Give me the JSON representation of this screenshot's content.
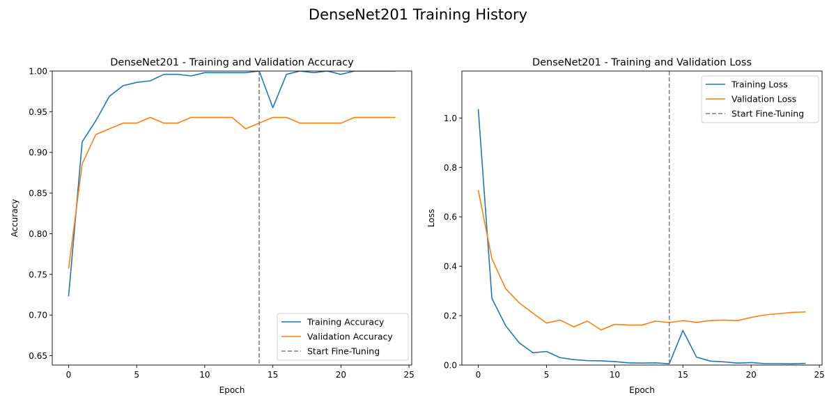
{
  "figure": {
    "suptitle": "DenseNet201 Training History"
  },
  "chart_data": [
    {
      "type": "line",
      "title": "DenseNet201 - Training and Validation Accuracy",
      "xlabel": "Epoch",
      "ylabel": "Accuracy",
      "xlim": [
        -1.2,
        25.2
      ],
      "ylim": [
        0.6385,
        1.0
      ],
      "xticks": [
        0,
        5,
        10,
        15,
        20,
        25
      ],
      "yticks": [
        0.65,
        0.7,
        0.75,
        0.8,
        0.85,
        0.9,
        0.95,
        1.0
      ],
      "ytick_labels": [
        "0.65",
        "0.70",
        "0.75",
        "0.80",
        "0.85",
        "0.90",
        "0.95",
        "1.00"
      ],
      "grid": false,
      "legend_position": "lower-right",
      "x": [
        0,
        1,
        2,
        3,
        4,
        5,
        6,
        7,
        8,
        9,
        10,
        11,
        12,
        13,
        14,
        15,
        16,
        17,
        18,
        19,
        20,
        21,
        22,
        23,
        24
      ],
      "series": [
        {
          "name": "Training Accuracy",
          "color": "#1f77b4",
          "values": [
            0.723,
            0.913,
            0.939,
            0.969,
            0.982,
            0.986,
            0.988,
            0.996,
            0.996,
            0.994,
            0.998,
            0.998,
            0.998,
            0.998,
            1.0,
            0.955,
            0.996,
            1.0,
            0.998,
            1.0,
            0.996,
            1.0,
            1.0,
            1.0,
            1.0
          ]
        },
        {
          "name": "Validation Accuracy",
          "color": "#ff7f0e",
          "values": [
            0.757,
            0.886,
            0.922,
            0.929,
            0.936,
            0.936,
            0.943,
            0.936,
            0.936,
            0.943,
            0.943,
            0.943,
            0.943,
            0.929,
            0.936,
            0.943,
            0.943,
            0.936,
            0.936,
            0.936,
            0.936,
            0.943,
            0.943,
            0.943,
            0.943
          ]
        }
      ],
      "vline": {
        "x": 14,
        "name": "Start Fine-Tuning",
        "color": "#808080"
      }
    },
    {
      "type": "line",
      "title": "DenseNet201 - Training and Validation Loss",
      "xlabel": "Epoch",
      "ylabel": "Loss",
      "xlim": [
        -1.2,
        25.2
      ],
      "ylim": [
        0.0,
        1.19
      ],
      "xticks": [
        0,
        5,
        10,
        15,
        20,
        25
      ],
      "yticks": [
        0.0,
        0.2,
        0.4,
        0.6,
        0.8,
        1.0
      ],
      "ytick_labels": [
        "0.0",
        "0.2",
        "0.4",
        "0.6",
        "0.8",
        "1.0"
      ],
      "grid": false,
      "legend_position": "upper-right",
      "x": [
        0,
        1,
        2,
        3,
        4,
        5,
        6,
        7,
        8,
        9,
        10,
        11,
        12,
        13,
        14,
        15,
        16,
        17,
        18,
        19,
        20,
        21,
        22,
        23,
        24
      ],
      "series": [
        {
          "name": "Training Loss",
          "color": "#1f77b4",
          "values": [
            1.036,
            0.27,
            0.16,
            0.09,
            0.05,
            0.055,
            0.03,
            0.022,
            0.018,
            0.017,
            0.014,
            0.009,
            0.008,
            0.009,
            0.005,
            0.14,
            0.032,
            0.016,
            0.013,
            0.008,
            0.01,
            0.006,
            0.006,
            0.005,
            0.007
          ]
        },
        {
          "name": "Validation Loss",
          "color": "#ff7f0e",
          "values": [
            0.708,
            0.43,
            0.31,
            0.252,
            0.21,
            0.17,
            0.182,
            0.155,
            0.178,
            0.142,
            0.165,
            0.162,
            0.162,
            0.178,
            0.172,
            0.18,
            0.173,
            0.18,
            0.182,
            0.18,
            0.193,
            0.203,
            0.208,
            0.213,
            0.215
          ]
        }
      ],
      "vline": {
        "x": 14,
        "name": "Start Fine-Tuning",
        "color": "#808080"
      }
    }
  ]
}
